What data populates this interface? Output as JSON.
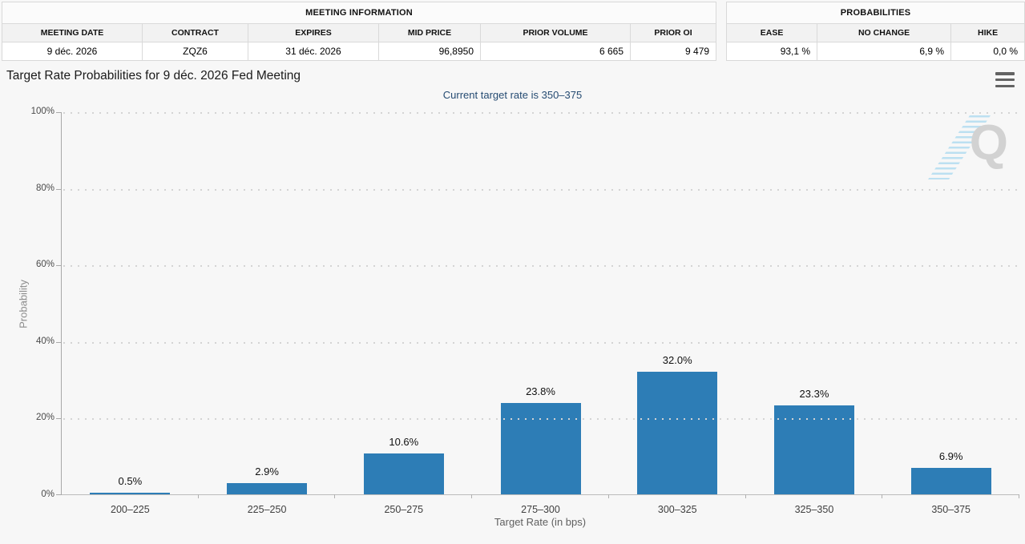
{
  "meeting_information": {
    "title": "MEETING INFORMATION",
    "columns": [
      "MEETING DATE",
      "CONTRACT",
      "EXPIRES",
      "MID PRICE",
      "PRIOR VOLUME",
      "PRIOR OI"
    ],
    "values": [
      "9 déc. 2026",
      "ZQZ6",
      "31 déc. 2026",
      "96,8950",
      "6 665",
      "9 479"
    ]
  },
  "probabilities": {
    "title": "PROBABILITIES",
    "columns": [
      "EASE",
      "NO CHANGE",
      "HIKE"
    ],
    "values": [
      "93,1 %",
      "6,9 %",
      "0,0 %"
    ]
  },
  "chart": {
    "title": "Target Rate Probabilities for 9 déc. 2026 Fed Meeting",
    "subtitle": "Current target rate is 350–375",
    "menu_icon": "hamburger-menu-icon",
    "watermark_letter": "Q"
  },
  "chart_data": {
    "type": "bar",
    "categories": [
      "200–225",
      "225–250",
      "250–275",
      "275–300",
      "300–325",
      "325–350",
      "350–375"
    ],
    "values": [
      0.5,
      2.9,
      10.6,
      23.8,
      32.0,
      23.3,
      6.9
    ],
    "value_labels": [
      "0.5%",
      "2.9%",
      "10.6%",
      "23.8%",
      "32.0%",
      "23.3%",
      "6.9%"
    ],
    "title": "Target Rate Probabilities for 9 déc. 2026 Fed Meeting",
    "subtitle": "Current target rate is 350–375",
    "xlabel": "Target Rate (in bps)",
    "ylabel": "Probability",
    "ylim": [
      0,
      100
    ],
    "yticks": [
      0,
      20,
      40,
      60,
      80,
      100
    ],
    "ytick_labels": [
      "0%",
      "20%",
      "40%",
      "60%",
      "80%",
      "100%"
    ],
    "grid": "horizontal-dotted",
    "legend": "none",
    "bar_color": "#2d7db6"
  },
  "colors": {
    "background": "#f7f7f7",
    "bar": "#2d7db6",
    "subtitle_text": "#254b72",
    "watermark_stripe": "#8cceec"
  }
}
